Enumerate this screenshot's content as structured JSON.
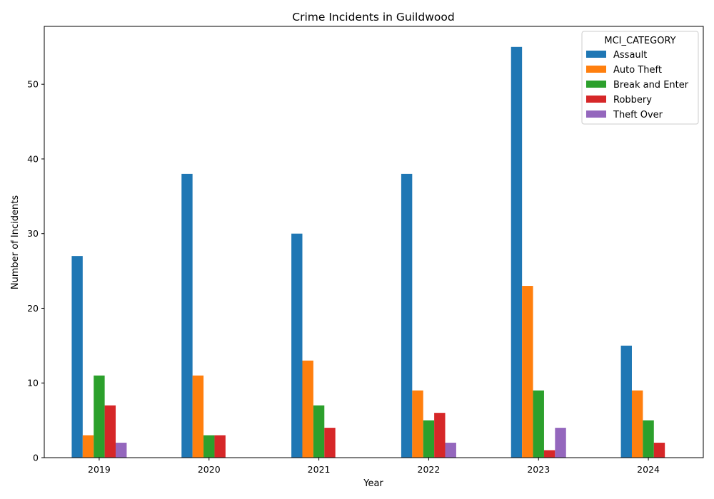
{
  "chart_data": {
    "type": "bar",
    "title": "Crime Incidents in Guildwood",
    "xlabel": "Year",
    "ylabel": "Number of Incidents",
    "categories": [
      "2019",
      "2020",
      "2021",
      "2022",
      "2023",
      "2024"
    ],
    "ylim": [
      0,
      57.75
    ],
    "yticks": [
      0,
      10,
      20,
      30,
      40,
      50
    ],
    "grid": false,
    "legend": {
      "title": "MCI_CATEGORY",
      "placement": "top-right"
    },
    "series": [
      {
        "name": "Assault",
        "color": "#1f77b4",
        "values": [
          27,
          38,
          30,
          38,
          55,
          15
        ]
      },
      {
        "name": "Auto Theft",
        "color": "#ff7f0e",
        "values": [
          3,
          11,
          13,
          9,
          23,
          9
        ]
      },
      {
        "name": "Break and Enter",
        "color": "#2ca02c",
        "values": [
          11,
          3,
          7,
          5,
          9,
          5
        ]
      },
      {
        "name": "Robbery",
        "color": "#d62728",
        "values": [
          7,
          3,
          4,
          6,
          1,
          2
        ]
      },
      {
        "name": "Theft Over",
        "color": "#9467bd",
        "values": [
          2,
          0,
          0,
          2,
          4,
          0
        ]
      }
    ]
  }
}
